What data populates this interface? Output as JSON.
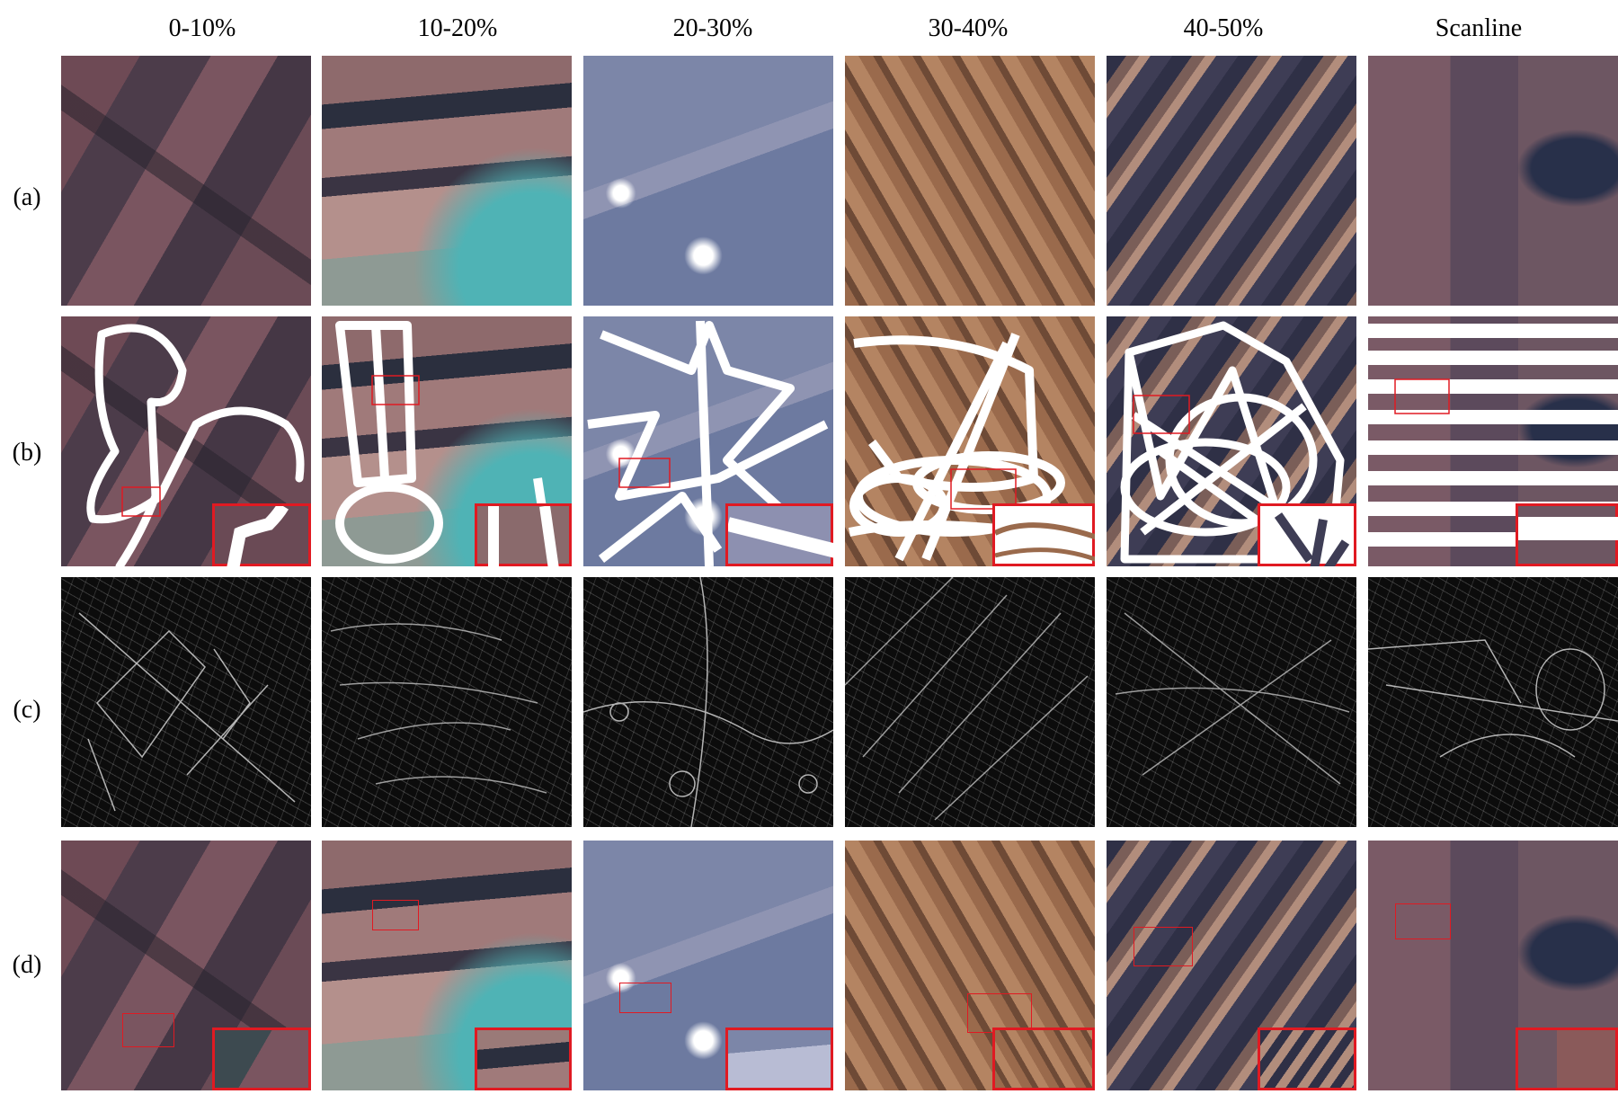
{
  "columns": [
    "0-10%",
    "10-20%",
    "20-30%",
    "30-40%",
    "40-50%",
    "Scanline"
  ],
  "rows": [
    "(a)",
    "(b)",
    "(c)",
    "(d)"
  ],
  "colors": {
    "mask": "#ffffff",
    "highlight": "#e01a22",
    "edge_background": "#0c0c0c"
  }
}
